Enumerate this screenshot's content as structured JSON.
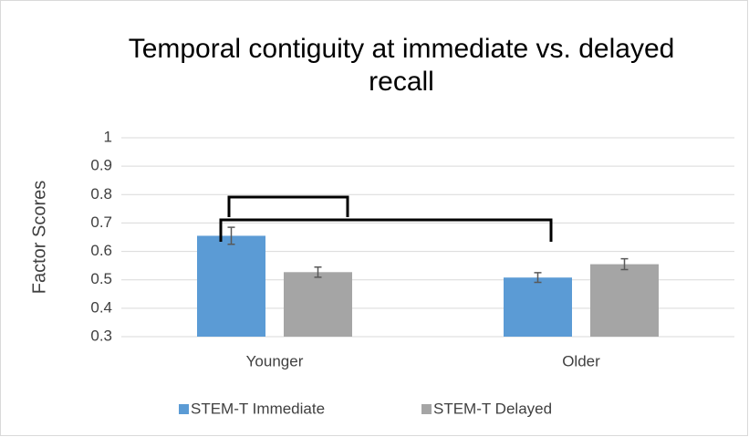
{
  "chart_data": {
    "type": "bar",
    "title": "Temporal contiguity at immediate vs. delayed recall",
    "ylabel": "Factor Scores",
    "categories": [
      "Younger",
      "Older"
    ],
    "series": [
      {
        "name": "STEM-T Immediate",
        "color": "#5b9bd5",
        "values": [
          0.655,
          0.508
        ],
        "errors": [
          0.03,
          0.017
        ]
      },
      {
        "name": "STEM-T Delayed",
        "color": "#a5a5a5",
        "values": [
          0.527,
          0.555
        ],
        "errors": [
          0.018,
          0.019
        ]
      }
    ],
    "ylim": [
      0.3,
      1
    ],
    "yticks": [
      0.3,
      0.4,
      0.5,
      0.6,
      0.7,
      0.8,
      0.9,
      1
    ],
    "grid": true,
    "legend": "bottom"
  }
}
